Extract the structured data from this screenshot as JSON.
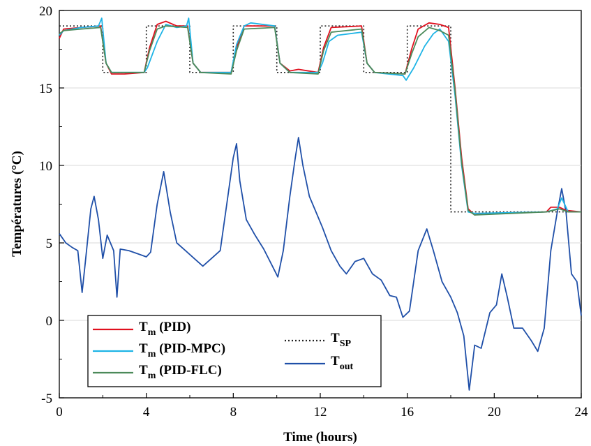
{
  "chart_data": {
    "type": "line",
    "title": "",
    "xlabel": "Time (hours)",
    "ylabel": "Températures (°C)",
    "xlim": [
      0,
      24
    ],
    "ylim": [
      -5,
      20
    ],
    "xticks": [
      0,
      4,
      8,
      12,
      16,
      20,
      24
    ],
    "yticks": [
      -5,
      0,
      5,
      10,
      15,
      20
    ],
    "grid": "horizontal",
    "legend_position": "bottom-left",
    "series": [
      {
        "name": "PID",
        "legend_main": "T",
        "legend_sub": "m",
        "legend_suffix": " (PID)",
        "color": "#e0101e",
        "style": "solid",
        "points": [
          [
            0,
            18.2
          ],
          [
            0.2,
            18.8
          ],
          [
            1,
            18.9
          ],
          [
            1.9,
            19.0
          ],
          [
            2.15,
            16.6
          ],
          [
            2.4,
            15.9
          ],
          [
            3,
            15.9
          ],
          [
            3.9,
            16.0
          ],
          [
            4.15,
            17.6
          ],
          [
            4.5,
            19.1
          ],
          [
            4.9,
            19.3
          ],
          [
            5.4,
            19.0
          ],
          [
            5.9,
            19.0
          ],
          [
            6.15,
            16.6
          ],
          [
            6.5,
            16.0
          ],
          [
            7.9,
            16.0
          ],
          [
            8.15,
            17.6
          ],
          [
            8.5,
            19.0
          ],
          [
            9.9,
            19.0
          ],
          [
            10.15,
            16.6
          ],
          [
            10.6,
            16.1
          ],
          [
            11,
            16.2
          ],
          [
            11.9,
            16.0
          ],
          [
            12.15,
            17.6
          ],
          [
            12.5,
            18.9
          ],
          [
            13.9,
            19.0
          ],
          [
            14.15,
            16.6
          ],
          [
            14.5,
            16.0
          ],
          [
            15.9,
            15.9
          ],
          [
            16.2,
            17.5
          ],
          [
            16.5,
            18.8
          ],
          [
            17,
            19.2
          ],
          [
            17.5,
            19.1
          ],
          [
            17.9,
            18.9
          ],
          [
            18.2,
            15.0
          ],
          [
            18.5,
            10.5
          ],
          [
            18.8,
            7.2
          ],
          [
            19.1,
            6.8
          ],
          [
            19.5,
            6.9
          ],
          [
            22.4,
            7.0
          ],
          [
            22.6,
            7.3
          ],
          [
            23.0,
            7.3
          ],
          [
            23.3,
            7.1
          ],
          [
            24,
            7.0
          ]
        ]
      },
      {
        "name": "PID-MPC",
        "legend_main": "T",
        "legend_sub": "m",
        "legend_suffix": " (PID-MPC)",
        "color": "#1eb4e6",
        "style": "solid",
        "points": [
          [
            0,
            18.4
          ],
          [
            0.2,
            18.7
          ],
          [
            1,
            18.9
          ],
          [
            1.8,
            19.0
          ],
          [
            1.95,
            19.5
          ],
          [
            2.15,
            16.6
          ],
          [
            2.4,
            16.0
          ],
          [
            3.9,
            16.0
          ],
          [
            4.05,
            16.3
          ],
          [
            4.5,
            18.0
          ],
          [
            4.9,
            19.1
          ],
          [
            5.4,
            18.9
          ],
          [
            5.85,
            19.0
          ],
          [
            5.95,
            19.5
          ],
          [
            6.15,
            16.6
          ],
          [
            6.5,
            16.0
          ],
          [
            7.9,
            16.0
          ],
          [
            8.15,
            17.8
          ],
          [
            8.5,
            19.0
          ],
          [
            8.8,
            19.2
          ],
          [
            9.9,
            19.0
          ],
          [
            10.15,
            16.6
          ],
          [
            10.6,
            16.0
          ],
          [
            11.9,
            16.0
          ],
          [
            12.1,
            16.6
          ],
          [
            12.4,
            18.0
          ],
          [
            12.8,
            18.4
          ],
          [
            13.9,
            18.6
          ],
          [
            14.15,
            16.6
          ],
          [
            14.5,
            16.0
          ],
          [
            15.8,
            15.8
          ],
          [
            15.95,
            15.5
          ],
          [
            16.3,
            16.3
          ],
          [
            16.8,
            17.7
          ],
          [
            17.2,
            18.5
          ],
          [
            17.5,
            18.8
          ],
          [
            17.9,
            18.0
          ],
          [
            18.2,
            14.5
          ],
          [
            18.5,
            10.0
          ],
          [
            18.8,
            7.0
          ],
          [
            19.1,
            6.9
          ],
          [
            22.4,
            7.0
          ],
          [
            22.9,
            7.2
          ],
          [
            23.1,
            7.9
          ],
          [
            23.4,
            7.0
          ],
          [
            24,
            7.0
          ]
        ]
      },
      {
        "name": "PID-FLC",
        "legend_main": "T",
        "legend_sub": "m",
        "legend_suffix": " (PID-FLC)",
        "color": "#4c8a5a",
        "style": "solid",
        "points": [
          [
            0,
            18.5
          ],
          [
            0.2,
            18.7
          ],
          [
            1,
            18.8
          ],
          [
            1.9,
            18.9
          ],
          [
            2.15,
            16.6
          ],
          [
            2.4,
            16.0
          ],
          [
            3.9,
            16.0
          ],
          [
            4.15,
            17.4
          ],
          [
            4.5,
            18.8
          ],
          [
            4.9,
            19.0
          ],
          [
            5.9,
            18.9
          ],
          [
            6.15,
            16.6
          ],
          [
            6.5,
            16.0
          ],
          [
            7.9,
            15.9
          ],
          [
            8.15,
            17.4
          ],
          [
            8.5,
            18.8
          ],
          [
            9.9,
            18.9
          ],
          [
            10.15,
            16.6
          ],
          [
            10.6,
            16.0
          ],
          [
            11.9,
            15.9
          ],
          [
            12.15,
            17.4
          ],
          [
            12.5,
            18.6
          ],
          [
            13.9,
            18.8
          ],
          [
            14.15,
            16.6
          ],
          [
            14.5,
            16.0
          ],
          [
            15.9,
            15.9
          ],
          [
            16.2,
            17.2
          ],
          [
            16.5,
            18.3
          ],
          [
            17,
            18.9
          ],
          [
            17.5,
            18.7
          ],
          [
            17.9,
            18.4
          ],
          [
            18.2,
            14.8
          ],
          [
            18.5,
            10.2
          ],
          [
            18.8,
            7.1
          ],
          [
            19.1,
            6.8
          ],
          [
            22.4,
            7.0
          ],
          [
            23.0,
            7.2
          ],
          [
            23.4,
            7.0
          ],
          [
            24,
            7.0
          ]
        ]
      },
      {
        "name": "SP",
        "legend_main": "T",
        "legend_sub": "SP",
        "legend_suffix": "",
        "color": "#222222",
        "style": "dotted",
        "points": [
          [
            0,
            19
          ],
          [
            2,
            19
          ],
          [
            2,
            16
          ],
          [
            4,
            16
          ],
          [
            4,
            19
          ],
          [
            6,
            19
          ],
          [
            6,
            16
          ],
          [
            8,
            16
          ],
          [
            8,
            19
          ],
          [
            10,
            19
          ],
          [
            10,
            16
          ],
          [
            12,
            16
          ],
          [
            12,
            19
          ],
          [
            14,
            19
          ],
          [
            14,
            16
          ],
          [
            16,
            16
          ],
          [
            16,
            19
          ],
          [
            18,
            19
          ],
          [
            18,
            7
          ],
          [
            24,
            7
          ]
        ]
      },
      {
        "name": "out",
        "legend_main": "T",
        "legend_sub": "out",
        "legend_suffix": "",
        "color": "#1f4fa8",
        "style": "solid",
        "points": [
          [
            0,
            5.6
          ],
          [
            0.3,
            5.0
          ],
          [
            0.6,
            4.7
          ],
          [
            0.85,
            4.5
          ],
          [
            1.05,
            1.8
          ],
          [
            1.2,
            3.8
          ],
          [
            1.45,
            7.2
          ],
          [
            1.6,
            8.0
          ],
          [
            1.8,
            6.5
          ],
          [
            2.0,
            4.0
          ],
          [
            2.2,
            5.5
          ],
          [
            2.5,
            4.5
          ],
          [
            2.65,
            1.5
          ],
          [
            2.8,
            4.6
          ],
          [
            3.2,
            4.5
          ],
          [
            3.6,
            4.3
          ],
          [
            4.0,
            4.1
          ],
          [
            4.2,
            4.4
          ],
          [
            4.5,
            7.5
          ],
          [
            4.8,
            9.6
          ],
          [
            5.1,
            7.0
          ],
          [
            5.4,
            5.0
          ],
          [
            5.8,
            4.5
          ],
          [
            6.2,
            4.0
          ],
          [
            6.6,
            3.5
          ],
          [
            7.0,
            4.0
          ],
          [
            7.4,
            4.5
          ],
          [
            7.7,
            7.5
          ],
          [
            8.0,
            10.5
          ],
          [
            8.15,
            11.4
          ],
          [
            8.3,
            9.0
          ],
          [
            8.6,
            6.5
          ],
          [
            9.0,
            5.5
          ],
          [
            9.4,
            4.6
          ],
          [
            9.8,
            3.5
          ],
          [
            10.05,
            2.8
          ],
          [
            10.3,
            4.5
          ],
          [
            10.6,
            8.0
          ],
          [
            10.85,
            10.5
          ],
          [
            11.0,
            11.8
          ],
          [
            11.2,
            10.0
          ],
          [
            11.5,
            8.0
          ],
          [
            11.8,
            7.0
          ],
          [
            12.1,
            6.0
          ],
          [
            12.5,
            4.5
          ],
          [
            12.9,
            3.5
          ],
          [
            13.2,
            3.0
          ],
          [
            13.6,
            3.8
          ],
          [
            14.0,
            4.0
          ],
          [
            14.4,
            3.0
          ],
          [
            14.8,
            2.6
          ],
          [
            15.2,
            1.6
          ],
          [
            15.5,
            1.5
          ],
          [
            15.8,
            0.2
          ],
          [
            16.1,
            0.6
          ],
          [
            16.5,
            4.5
          ],
          [
            16.9,
            5.9
          ],
          [
            17.2,
            4.5
          ],
          [
            17.6,
            2.5
          ],
          [
            18.0,
            1.5
          ],
          [
            18.3,
            0.5
          ],
          [
            18.6,
            -1.0
          ],
          [
            18.85,
            -4.5
          ],
          [
            19.1,
            -1.6
          ],
          [
            19.4,
            -1.8
          ],
          [
            19.8,
            0.5
          ],
          [
            20.1,
            1.0
          ],
          [
            20.35,
            3.0
          ],
          [
            20.6,
            1.5
          ],
          [
            20.9,
            -0.5
          ],
          [
            21.3,
            -0.5
          ],
          [
            21.7,
            -1.3
          ],
          [
            22.0,
            -2.0
          ],
          [
            22.3,
            -0.5
          ],
          [
            22.6,
            4.5
          ],
          [
            22.9,
            7.0
          ],
          [
            23.1,
            8.5
          ],
          [
            23.3,
            7.0
          ],
          [
            23.55,
            3.0
          ],
          [
            23.8,
            2.5
          ],
          [
            24.0,
            0.3
          ]
        ]
      }
    ]
  }
}
